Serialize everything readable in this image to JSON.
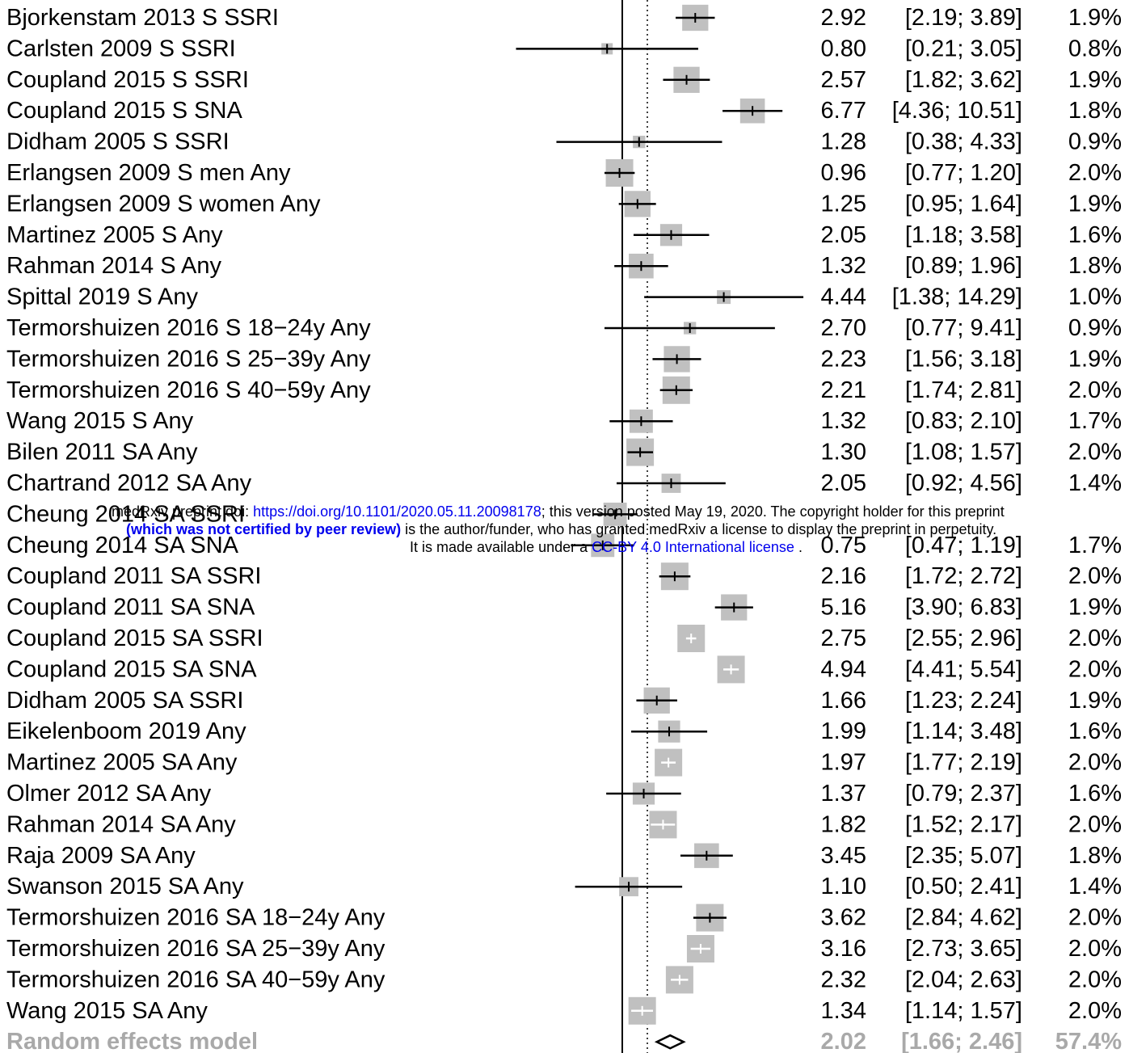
{
  "chart_data": {
    "type": "forest",
    "axis_scale": "log",
    "x_range": [
      0.2,
      15
    ],
    "null_value": 1,
    "pooled_reference": 2.02,
    "studies": [
      {
        "label": "Bjorkenstam 2013 S SSRI",
        "est": 2.92,
        "lo": 2.19,
        "hi": 3.89,
        "est_text": "2.92",
        "ci_text": "[2.19;  3.89]",
        "weight": "1.9%",
        "fixed": false
      },
      {
        "label": "Carlsten 2009 S SSRI",
        "est": 0.8,
        "lo": 0.21,
        "hi": 3.05,
        "est_text": "0.80",
        "ci_text": "[0.21;  3.05]",
        "weight": "0.8%",
        "fixed": false
      },
      {
        "label": "Coupland 2015 S SSRI",
        "est": 2.57,
        "lo": 1.82,
        "hi": 3.62,
        "est_text": "2.57",
        "ci_text": "[1.82;  3.62]",
        "weight": "1.9%",
        "fixed": false
      },
      {
        "label": "Coupland 2015 S SNA",
        "est": 6.77,
        "lo": 4.36,
        "hi": 10.51,
        "est_text": "6.77",
        "ci_text": "[4.36; 10.51]",
        "weight": "1.8%",
        "fixed": false
      },
      {
        "label": "Didham 2005 S SSRI",
        "est": 1.28,
        "lo": 0.38,
        "hi": 4.33,
        "est_text": "1.28",
        "ci_text": "[0.38;  4.33]",
        "weight": "0.9%",
        "fixed": false
      },
      {
        "label": "Erlangsen 2009 S men Any",
        "est": 0.96,
        "lo": 0.77,
        "hi": 1.2,
        "est_text": "0.96",
        "ci_text": "[0.77;  1.20]",
        "weight": "2.0%",
        "fixed": false
      },
      {
        "label": "Erlangsen 2009 S women Any",
        "est": 1.25,
        "lo": 0.95,
        "hi": 1.64,
        "est_text": "1.25",
        "ci_text": "[0.95;  1.64]",
        "weight": "1.9%",
        "fixed": false
      },
      {
        "label": "Martinez 2005 S Any",
        "est": 2.05,
        "lo": 1.18,
        "hi": 3.58,
        "est_text": "2.05",
        "ci_text": "[1.18;  3.58]",
        "weight": "1.6%",
        "fixed": false
      },
      {
        "label": "Rahman 2014 S Any",
        "est": 1.32,
        "lo": 0.89,
        "hi": 1.96,
        "est_text": "1.32",
        "ci_text": "[0.89;  1.96]",
        "weight": "1.8%",
        "fixed": false
      },
      {
        "label": "Spittal 2019 S Any",
        "est": 4.44,
        "lo": 1.38,
        "hi": 14.29,
        "est_text": "4.44",
        "ci_text": "[1.38; 14.29]",
        "weight": "1.0%",
        "fixed": false
      },
      {
        "label": "Termorshuizen 2016 S 18−24y Any",
        "est": 2.7,
        "lo": 0.77,
        "hi": 9.41,
        "est_text": "2.70",
        "ci_text": "[0.77;  9.41]",
        "weight": "0.9%",
        "fixed": false
      },
      {
        "label": "Termorshuizen 2016 S 25−39y Any",
        "est": 2.23,
        "lo": 1.56,
        "hi": 3.18,
        "est_text": "2.23",
        "ci_text": "[1.56;  3.18]",
        "weight": "1.9%",
        "fixed": false
      },
      {
        "label": "Termorshuizen 2016 S 40−59y Any",
        "est": 2.21,
        "lo": 1.74,
        "hi": 2.81,
        "est_text": "2.21",
        "ci_text": "[1.74;  2.81]",
        "weight": "2.0%",
        "fixed": false
      },
      {
        "label": "Wang 2015  S Any",
        "est": 1.32,
        "lo": 0.83,
        "hi": 2.1,
        "est_text": "1.32",
        "ci_text": "[0.83;  2.10]",
        "weight": "1.7%",
        "fixed": false
      },
      {
        "label": "Bilen 2011 SA Any",
        "est": 1.3,
        "lo": 1.08,
        "hi": 1.57,
        "est_text": "1.30",
        "ci_text": "[1.08;  1.57]",
        "weight": "2.0%",
        "fixed": false
      },
      {
        "label": "Chartrand 2012  SA Any",
        "est": 2.05,
        "lo": 0.92,
        "hi": 4.56,
        "est_text": "2.05",
        "ci_text": "[0.92;  4.56]",
        "weight": "1.4%",
        "fixed": false
      },
      {
        "label": "Cheung 2014  SA SSRI",
        "est": 0.9,
        "lo": 0.65,
        "hi": 1.25,
        "est_text": "",
        "ci_text": "",
        "weight": "",
        "fixed": false
      },
      {
        "label": "Cheung 2014  SA SNA",
        "est": 0.75,
        "lo": 0.47,
        "hi": 1.19,
        "est_text": "0.75",
        "ci_text": "[0.47;  1.19]",
        "weight": "1.7%",
        "fixed": false
      },
      {
        "label": "Coupland 2011  SA SSRI",
        "est": 2.16,
        "lo": 1.72,
        "hi": 2.72,
        "est_text": "2.16",
        "ci_text": "[1.72;  2.72]",
        "weight": "2.0%",
        "fixed": false
      },
      {
        "label": "Coupland 2011  SA SNA",
        "est": 5.16,
        "lo": 3.9,
        "hi": 6.83,
        "est_text": "5.16",
        "ci_text": "[3.90;  6.83]",
        "weight": "1.9%",
        "fixed": false
      },
      {
        "label": "Coupland 2015  SA SSRI",
        "est": 2.75,
        "lo": 2.55,
        "hi": 2.96,
        "est_text": "2.75",
        "ci_text": "[2.55;  2.96]",
        "weight": "2.0%",
        "fixed": true
      },
      {
        "label": "Coupland 2015  SA SNA",
        "est": 4.94,
        "lo": 4.41,
        "hi": 5.54,
        "est_text": "4.94",
        "ci_text": "[4.41;  5.54]",
        "weight": "2.0%",
        "fixed": true
      },
      {
        "label": "Didham 2005  SA SSRI",
        "est": 1.66,
        "lo": 1.23,
        "hi": 2.24,
        "est_text": "1.66",
        "ci_text": "[1.23;  2.24]",
        "weight": "1.9%",
        "fixed": false
      },
      {
        "label": "Eikelenboom 2019 Any",
        "est": 1.99,
        "lo": 1.14,
        "hi": 3.48,
        "est_text": "1.99",
        "ci_text": "[1.14;  3.48]",
        "weight": "1.6%",
        "fixed": false
      },
      {
        "label": "Martinez 2005 SA Any",
        "est": 1.97,
        "lo": 1.77,
        "hi": 2.19,
        "est_text": "1.97",
        "ci_text": "[1.77;  2.19]",
        "weight": "2.0%",
        "fixed": true
      },
      {
        "label": "Olmer 2012  SA Any",
        "est": 1.37,
        "lo": 0.79,
        "hi": 2.37,
        "est_text": "1.37",
        "ci_text": "[0.79;  2.37]",
        "weight": "1.6%",
        "fixed": false
      },
      {
        "label": "Rahman 2014  SA Any",
        "est": 1.82,
        "lo": 1.52,
        "hi": 2.17,
        "est_text": "1.82",
        "ci_text": "[1.52;  2.17]",
        "weight": "2.0%",
        "fixed": true
      },
      {
        "label": "Raja 2009  SA Any",
        "est": 3.45,
        "lo": 2.35,
        "hi": 5.07,
        "est_text": "3.45",
        "ci_text": "[2.35;  5.07]",
        "weight": "1.8%",
        "fixed": false
      },
      {
        "label": "Swanson 2015  SA Any",
        "est": 1.1,
        "lo": 0.5,
        "hi": 2.41,
        "est_text": "1.10",
        "ci_text": "[0.50;  2.41]",
        "weight": "1.4%",
        "fixed": false
      },
      {
        "label": "Termorshuizen 2016 SA 18−24y Any",
        "est": 3.62,
        "lo": 2.84,
        "hi": 4.62,
        "est_text": "3.62",
        "ci_text": "[2.84;  4.62]",
        "weight": "2.0%",
        "fixed": false
      },
      {
        "label": "Termorshuizen 2016 SA 25−39y Any",
        "est": 3.16,
        "lo": 2.73,
        "hi": 3.65,
        "est_text": "3.16",
        "ci_text": "[2.73;  3.65]",
        "weight": "2.0%",
        "fixed": true
      },
      {
        "label": "Termorshuizen 2016 SA 40−59y Any",
        "est": 2.32,
        "lo": 2.04,
        "hi": 2.63,
        "est_text": "2.32",
        "ci_text": "[2.04;  2.63]",
        "weight": "2.0%",
        "fixed": true
      },
      {
        "label": "Wang 2015  SA Any",
        "est": 1.34,
        "lo": 1.14,
        "hi": 1.57,
        "est_text": "1.34",
        "ci_text": "[1.14;  1.57]",
        "weight": "2.0%",
        "fixed": true
      }
    ],
    "summary": {
      "label": "Random effects model",
      "est": 2.02,
      "lo": 1.66,
      "hi": 2.46,
      "est_text": "2.02",
      "ci_text": "[1.66;  2.46]",
      "weight": "57.4%"
    }
  },
  "watermark": {
    "line1_prefix": "medRxiv preprint doi: ",
    "line1_doi": "https://doi.org/10.1101/2020.05.11.20098178",
    "line1_suffix": "; this version posted May 19, 2020. The copyright holder for this preprint",
    "line2_bold": "(which was not certified by peer review)",
    "line2_rest": " is the author/funder, who has granted medRxiv a license to display the preprint in perpetuity.",
    "line3_prefix": "It is made available under a ",
    "line3_link": "CC-BY 4.0 International license",
    "line3_suffix": " ."
  },
  "colors": {
    "box": "#c0c0c0",
    "line": "#000000",
    "fixed_tick": "#ffffff",
    "summary_text": "#a9a9a9"
  }
}
